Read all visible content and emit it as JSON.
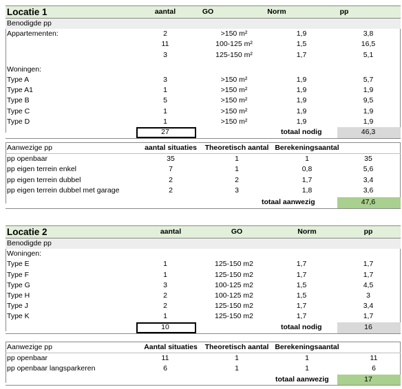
{
  "loc1": {
    "header": {
      "title": "Locatie 1",
      "aantal": "aantal",
      "go": "GO",
      "norm": "Norm",
      "pp": "pp"
    },
    "benodigd_label": "Benodigde pp",
    "appartementen_label": "Appartementen:",
    "appartementen": [
      {
        "aantal": "2",
        "go": ">150 m²",
        "norm": "1,9",
        "pp": "3,8"
      },
      {
        "aantal": "11",
        "go": "100-125 m²",
        "norm": "1,5",
        "pp": "16,5"
      },
      {
        "aantal": "3",
        "go": "125-150 m²",
        "norm": "1,7",
        "pp": "5,1"
      }
    ],
    "woningen_label": "Woningen:",
    "woningen": [
      {
        "type": "Type A",
        "aantal": "3",
        "go": ">150 m²",
        "norm": "1,9",
        "pp": "5,7"
      },
      {
        "type": "Type A1",
        "aantal": "1",
        "go": ">150 m²",
        "norm": "1,9",
        "pp": "1,9"
      },
      {
        "type": "Type B",
        "aantal": "5",
        "go": ">150 m²",
        "norm": "1,9",
        "pp": "9,5"
      },
      {
        "type": "Type C",
        "aantal": "1",
        "go": ">150 m²",
        "norm": "1,9",
        "pp": "1,9"
      },
      {
        "type": "Type D",
        "aantal": "1",
        "go": ">150 m²",
        "norm": "1,9",
        "pp": "1,9"
      }
    ],
    "total_aantal": "27",
    "total_label": "totaal nodig",
    "total_pp": "46,3",
    "aanwezig": {
      "header": {
        "label": "Aanwezige pp",
        "c1": "aantal situaties",
        "c2": "Theoretisch aantal",
        "c3": "Berekeningsaantal"
      },
      "rows": [
        {
          "label": "pp openbaar",
          "c1": "35",
          "c2": "1",
          "c3": "1",
          "pp": "35"
        },
        {
          "label": "pp eigen terrein enkel",
          "c1": "7",
          "c2": "1",
          "c3": "0,8",
          "pp": "5,6"
        },
        {
          "label": "pp eigen terrein dubbel",
          "c1": "2",
          "c2": "2",
          "c3": "1,7",
          "pp": "3,4"
        },
        {
          "label": "pp eigen terrein dubbel met garage",
          "c1": "2",
          "c2": "3",
          "c3": "1,8",
          "pp": "3,6"
        }
      ],
      "total_label": "totaal aanwezig",
      "total_pp": "47,6"
    }
  },
  "loc2": {
    "header": {
      "title": "Locatie 2",
      "aantal": "aantal",
      "go": "GO",
      "norm": "Norm",
      "pp": "pp"
    },
    "benodigd_label": "Benodigde pp",
    "woningen_label": "Woningen:",
    "woningen": [
      {
        "type": "Type E",
        "aantal": "1",
        "go": "125-150 m2",
        "norm": "1,7",
        "pp": "1,7"
      },
      {
        "type": "Type F",
        "aantal": "1",
        "go": "125-150 m2",
        "norm": "1,7",
        "pp": "1,7"
      },
      {
        "type": "Type G",
        "aantal": "3",
        "go": "100-125 m2",
        "norm": "1,5",
        "pp": "4,5"
      },
      {
        "type": "Type H",
        "aantal": "2",
        "go": "100-125 m2",
        "norm": "1,5",
        "pp": "3"
      },
      {
        "type": "Type J",
        "aantal": "2",
        "go": "125-150 m2",
        "norm": "1,7",
        "pp": "3,4"
      },
      {
        "type": "Type K",
        "aantal": "1",
        "go": "125-150 m2",
        "norm": "1,7",
        "pp": "1,7"
      }
    ],
    "total_aantal": "10",
    "total_label": "totaal nodig",
    "total_pp": "16",
    "aanwezig": {
      "header": {
        "label": "Aanwezige pp",
        "c1": "Aantal situaties",
        "c2": "Theoretisch aantal",
        "c3": "Berekeningsaantal"
      },
      "rows": [
        {
          "label": "pp openbaar",
          "c1": "11",
          "c2": "1",
          "c3": "1",
          "pp": "11"
        },
        {
          "label": "pp openbaar langsparkeren",
          "c1": "6",
          "c2": "1",
          "c3": "1",
          "pp": "6"
        }
      ],
      "total_label": "totaal aanwezig",
      "total_pp": "17"
    }
  },
  "colors": {
    "header_bg": "#e2efda",
    "grey_total": "#d9d9d9",
    "green_total": "#a9d08e",
    "sub_bg": "#ededed"
  }
}
